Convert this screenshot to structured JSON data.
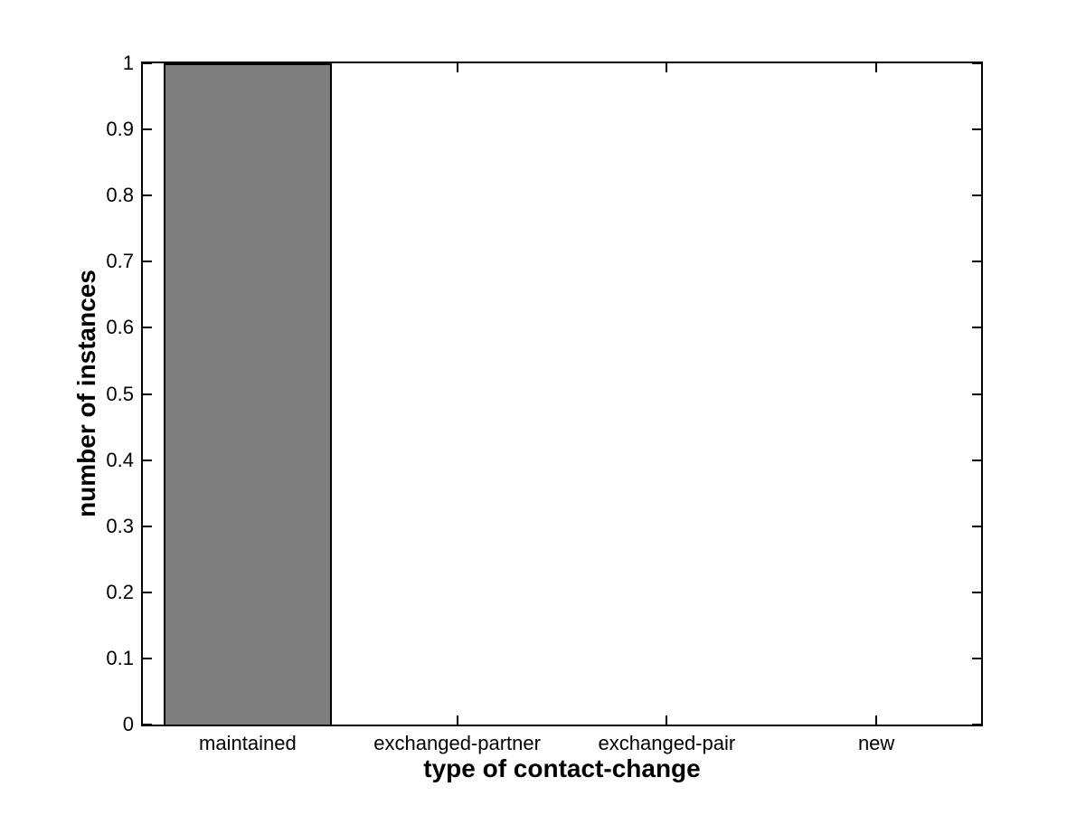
{
  "chart_data": {
    "type": "bar",
    "title": "",
    "xlabel": "type of contact-change",
    "ylabel": "number of instances",
    "categories": [
      "maintained",
      "exchanged-partner",
      "exchanged-pair",
      "new"
    ],
    "values": [
      1,
      0,
      0,
      0
    ],
    "ylim": [
      0,
      1
    ],
    "yticks": [
      "0",
      "0.1",
      "0.2",
      "0.3",
      "0.4",
      "0.5",
      "0.6",
      "0.7",
      "0.8",
      "0.9",
      "1"
    ],
    "bar_width_fraction": 0.8,
    "grid": false,
    "legend": null,
    "layout_hints": {
      "tick_direction": "in",
      "box": true,
      "legend_position": "none"
    },
    "colors": {
      "bar_fill": "#7f7f7f",
      "bar_edge": "#000000",
      "axis": "#000000",
      "background": "#ffffff",
      "text": "#000000"
    }
  }
}
